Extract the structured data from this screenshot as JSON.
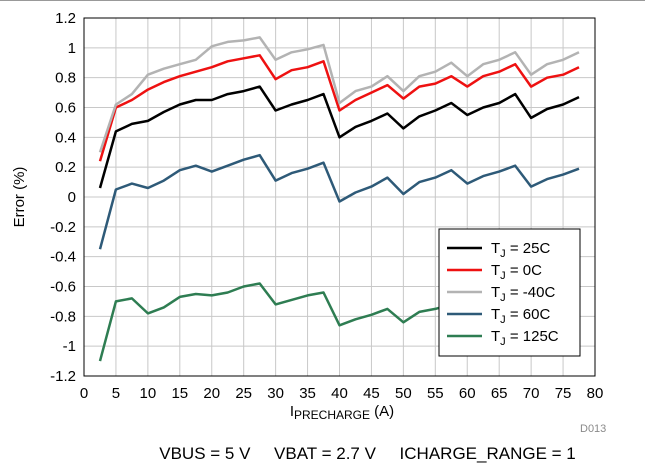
{
  "chart_data": {
    "type": "line",
    "xlabel_main": "I",
    "xlabel_sub": "PRECHARGE",
    "xlabel_unit": " (A)",
    "ylabel": "Error (%)",
    "xlim": [
      0,
      80
    ],
    "ylim": [
      -1.2,
      1.2
    ],
    "x_ticks": [
      0,
      5,
      10,
      15,
      20,
      25,
      30,
      35,
      40,
      45,
      50,
      55,
      60,
      65,
      70,
      75,
      80
    ],
    "y_ticks": [
      -1.2,
      -1,
      -0.8,
      -0.6,
      -0.4,
      -0.2,
      0,
      0.2,
      0.4,
      0.6,
      0.8,
      1,
      1.2
    ],
    "grid": true,
    "legend_position": "bottom-right",
    "x": [
      2.5,
      5,
      7.5,
      10,
      12.5,
      15,
      17.5,
      20,
      22.5,
      25,
      27.5,
      30,
      32.5,
      35,
      37.5,
      40,
      42.5,
      45,
      47.5,
      50,
      52.5,
      55,
      57.5,
      60,
      62.5,
      65,
      67.5,
      70,
      72.5,
      75,
      77.5
    ],
    "series": [
      {
        "name_main": "T",
        "name_sub": "J",
        "name_rest": " = 25C",
        "color": "#000000",
        "values": [
          0.06,
          0.44,
          0.49,
          0.51,
          0.57,
          0.62,
          0.65,
          0.65,
          0.69,
          0.71,
          0.74,
          0.58,
          0.62,
          0.65,
          0.69,
          0.4,
          0.47,
          0.51,
          0.56,
          0.46,
          0.54,
          0.58,
          0.63,
          0.55,
          0.6,
          0.63,
          0.69,
          0.53,
          0.59,
          0.62,
          0.67
        ]
      },
      {
        "name_main": "T",
        "name_sub": "J",
        "name_rest": " = 0C",
        "color": "#ee1111",
        "values": [
          0.24,
          0.6,
          0.65,
          0.72,
          0.77,
          0.81,
          0.84,
          0.87,
          0.91,
          0.93,
          0.95,
          0.79,
          0.85,
          0.87,
          0.91,
          0.58,
          0.65,
          0.7,
          0.75,
          0.66,
          0.74,
          0.76,
          0.81,
          0.74,
          0.81,
          0.84,
          0.89,
          0.74,
          0.8,
          0.82,
          0.87
        ]
      },
      {
        "name_main": "T",
        "name_sub": "J",
        "name_rest": " = -40C",
        "color": "#b3b3b3",
        "values": [
          0.3,
          0.62,
          0.69,
          0.82,
          0.86,
          0.89,
          0.92,
          1.01,
          1.04,
          1.05,
          1.07,
          0.92,
          0.97,
          0.99,
          1.02,
          0.63,
          0.71,
          0.74,
          0.81,
          0.71,
          0.81,
          0.84,
          0.9,
          0.81,
          0.89,
          0.92,
          0.97,
          0.82,
          0.89,
          0.92,
          0.97
        ]
      },
      {
        "name_main": "T",
        "name_sub": "J",
        "name_rest": " = 60C",
        "color": "#2e5a78",
        "values": [
          -0.35,
          0.05,
          0.09,
          0.06,
          0.11,
          0.18,
          0.21,
          0.17,
          0.21,
          0.25,
          0.28,
          0.11,
          0.16,
          0.19,
          0.23,
          -0.03,
          0.03,
          0.07,
          0.13,
          0.02,
          0.1,
          0.13,
          0.18,
          0.09,
          0.14,
          0.17,
          0.21,
          0.07,
          0.12,
          0.15,
          0.19
        ]
      },
      {
        "name_main": "T",
        "name_sub": "J",
        "name_rest": " = 125C",
        "color": "#2e7d52",
        "values": [
          -1.1,
          -0.7,
          -0.68,
          -0.78,
          -0.74,
          -0.67,
          -0.65,
          -0.66,
          -0.64,
          -0.6,
          -0.58,
          -0.72,
          -0.69,
          -0.66,
          -0.64,
          -0.86,
          -0.82,
          -0.79,
          -0.75,
          -0.84,
          -0.77,
          -0.75,
          -0.72,
          -0.76,
          -0.71,
          -0.69,
          -0.65,
          -0.79,
          -0.74,
          -0.72,
          -0.69
        ]
      }
    ],
    "figure_id": "D013"
  },
  "caption": "VBUS = 5 V     VBAT = 2.7 V     ICHARGE_RANGE = 1"
}
